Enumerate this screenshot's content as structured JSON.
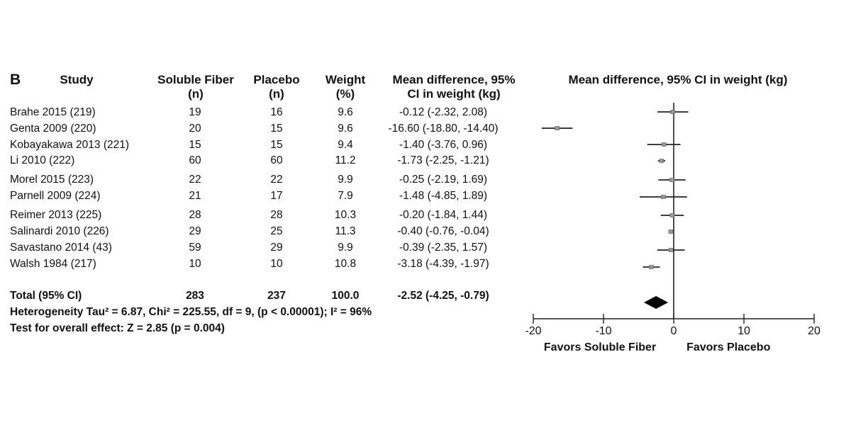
{
  "panel_label": "B",
  "columns": {
    "study": "Study",
    "fiber_l1": "Soluble Fiber",
    "fiber_l2": "(n)",
    "placebo_l1": "Placebo",
    "placebo_l2": "(n)",
    "weight_l1": "Weight",
    "weight_l2": "(%)",
    "md_l1": "Mean difference, 95%",
    "md_l2": "CI in weight (kg)"
  },
  "studies": [
    {
      "study": "Brahe 2015 (219)",
      "fiber": "19",
      "placebo": "16",
      "weight": "9.6",
      "ci_text": "-0.12 (-2.32, 2.08)"
    },
    {
      "study": "Genta 2009 (220)",
      "fiber": "20",
      "placebo": "15",
      "weight": "9.6",
      "ci_text": "-16.60 (-18.80, -14.40)"
    },
    {
      "study": "Kobayakawa 2013 (221)",
      "fiber": "15",
      "placebo": "15",
      "weight": "9.4",
      "ci_text": "-1.40 (-3.76, 0.96)"
    },
    {
      "study": "Li 2010 (222)",
      "fiber": "60",
      "placebo": "60",
      "weight": "11.2",
      "ci_text": "-1.73 (-2.25, -1.21)"
    },
    {
      "study": "Morel 2015 (223)",
      "fiber": "22",
      "placebo": "22",
      "weight": "9.9",
      "ci_text": "-0.25 (-2.19, 1.69)"
    },
    {
      "study": "Parnell 2009 (224)",
      "fiber": "21",
      "placebo": "17",
      "weight": "7.9",
      "ci_text": "-1.48 (-4.85, 1.89)"
    },
    {
      "study": "Reimer 2013 (225)",
      "fiber": "28",
      "placebo": "28",
      "weight": "10.3",
      "ci_text": "-0.20 (-1.84, 1.44)"
    },
    {
      "study": "Salinardi 2010 (226)",
      "fiber": "29",
      "placebo": "25",
      "weight": "11.3",
      "ci_text": "-0.40 (-0.76, -0.04)"
    },
    {
      "study": "Savastano 2014 (43)",
      "fiber": "59",
      "placebo": "29",
      "weight": "9.9",
      "ci_text": "-0.39 (-2.35, 1.57)"
    },
    {
      "study": "Walsh 1984 (217)",
      "fiber": "10",
      "placebo": "10",
      "weight": "10.8",
      "ci_text": "-3.18 (-4.39, -1.97)"
    }
  ],
  "total": {
    "label": "Total (95% CI)",
    "fiber": "283",
    "placebo": "237",
    "weight": "100.0",
    "ci_text": "-2.52 (-4.25, -0.79)"
  },
  "heterogeneity": "Heterogeneity Tau² = 6.87, Chi² = 225.55, df = 9, (p < 0.00001); I² = 96%",
  "overall_effect": "Test for overall effect: Z = 2.85 (p = 0.004)",
  "chart_data": {
    "type": "forest",
    "title": "Mean difference, 95% CI in weight (kg)",
    "xlim": [
      -20,
      20
    ],
    "ticks": [
      -20,
      -10,
      0,
      10,
      20
    ],
    "tick_labels": [
      "-20",
      "-10",
      "0",
      "10",
      "20"
    ],
    "left_label": "Favors Soluble Fiber",
    "right_label": "Favors Placebo",
    "points": [
      {
        "study": "Brahe 2015 (219)",
        "mean": -0.12,
        "low": -2.32,
        "high": 2.08
      },
      {
        "study": "Genta 2009 (220)",
        "mean": -16.6,
        "low": -18.8,
        "high": -14.4
      },
      {
        "study": "Kobayakawa 2013 (221)",
        "mean": -1.4,
        "low": -3.76,
        "high": 0.96
      },
      {
        "study": "Li 2010 (222)",
        "mean": -1.73,
        "low": -2.25,
        "high": -1.21
      },
      {
        "study": "Morel 2015 (223)",
        "mean": -0.25,
        "low": -2.19,
        "high": 1.69
      },
      {
        "study": "Parnell 2009 (224)",
        "mean": -1.48,
        "low": -4.85,
        "high": 1.89
      },
      {
        "study": "Reimer 2013 (225)",
        "mean": -0.2,
        "low": -1.84,
        "high": 1.44
      },
      {
        "study": "Salinardi 2010 (226)",
        "mean": -0.4,
        "low": -0.76,
        "high": -0.04
      },
      {
        "study": "Savastano 2014 (43)",
        "mean": -0.39,
        "low": -2.35,
        "high": 1.57
      },
      {
        "study": "Walsh 1984 (217)",
        "mean": -3.18,
        "low": -4.39,
        "high": -1.97
      }
    ],
    "pooled": {
      "mean": -2.52,
      "low": -4.25,
      "high": -0.79
    }
  }
}
